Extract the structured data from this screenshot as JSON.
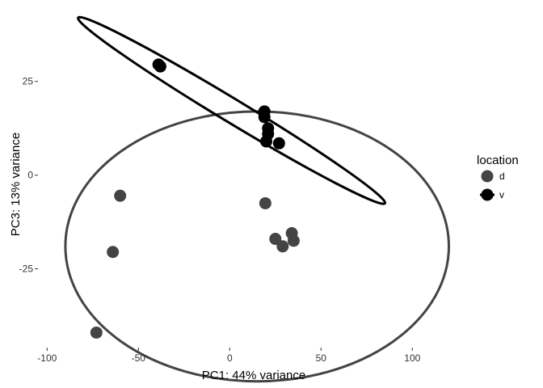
{
  "chart_data": {
    "type": "scatter",
    "title": "",
    "xlabel": "PC1: 44% variance",
    "ylabel": "PC3: 13% variance",
    "xlim": [
      -105,
      122
    ],
    "ylim": [
      -46,
      45
    ],
    "x_ticks": [
      -100,
      -50,
      0,
      50,
      100
    ],
    "x_tick_labels": [
      "-100",
      "-50",
      "0",
      "50",
      "100"
    ],
    "y_ticks": [
      -25,
      0,
      25
    ],
    "y_tick_labels": [
      "-25",
      "0",
      "25"
    ],
    "grid": false,
    "legend": {
      "title": "location",
      "placement": "right",
      "entries": [
        {
          "label": "d",
          "color": "#444444"
        },
        {
          "label": "v",
          "color": "#000000"
        }
      ]
    },
    "series": [
      {
        "name": "d",
        "color": "#444444",
        "points": [
          {
            "x": -60,
            "y": -5.5
          },
          {
            "x": -64,
            "y": -20.5
          },
          {
            "x": -73,
            "y": -42
          },
          {
            "x": 19.5,
            "y": -7.5
          },
          {
            "x": 25,
            "y": -17
          },
          {
            "x": 29,
            "y": -19
          },
          {
            "x": 34,
            "y": -15.5
          },
          {
            "x": 35,
            "y": -17.5
          }
        ],
        "ellipse": {
          "cx": 15,
          "cy": -19,
          "rx": 105,
          "ry": 36,
          "angle_deg": 0
        }
      },
      {
        "name": "v",
        "color": "#000000",
        "points": [
          {
            "x": -39,
            "y": 29.5
          },
          {
            "x": -38,
            "y": 29
          },
          {
            "x": 19,
            "y": 17
          },
          {
            "x": 19,
            "y": 15.5
          },
          {
            "x": 21,
            "y": 12.5
          },
          {
            "x": 21,
            "y": 11
          },
          {
            "x": 20,
            "y": 9
          },
          {
            "x": 27,
            "y": 8.5
          }
        ],
        "ellipse_polygon": [
          [
            -83,
            42
          ],
          [
            -75,
            42.7
          ],
          [
            85,
            -7.5
          ],
          [
            77,
            -6.9
          ]
        ]
      }
    ]
  }
}
